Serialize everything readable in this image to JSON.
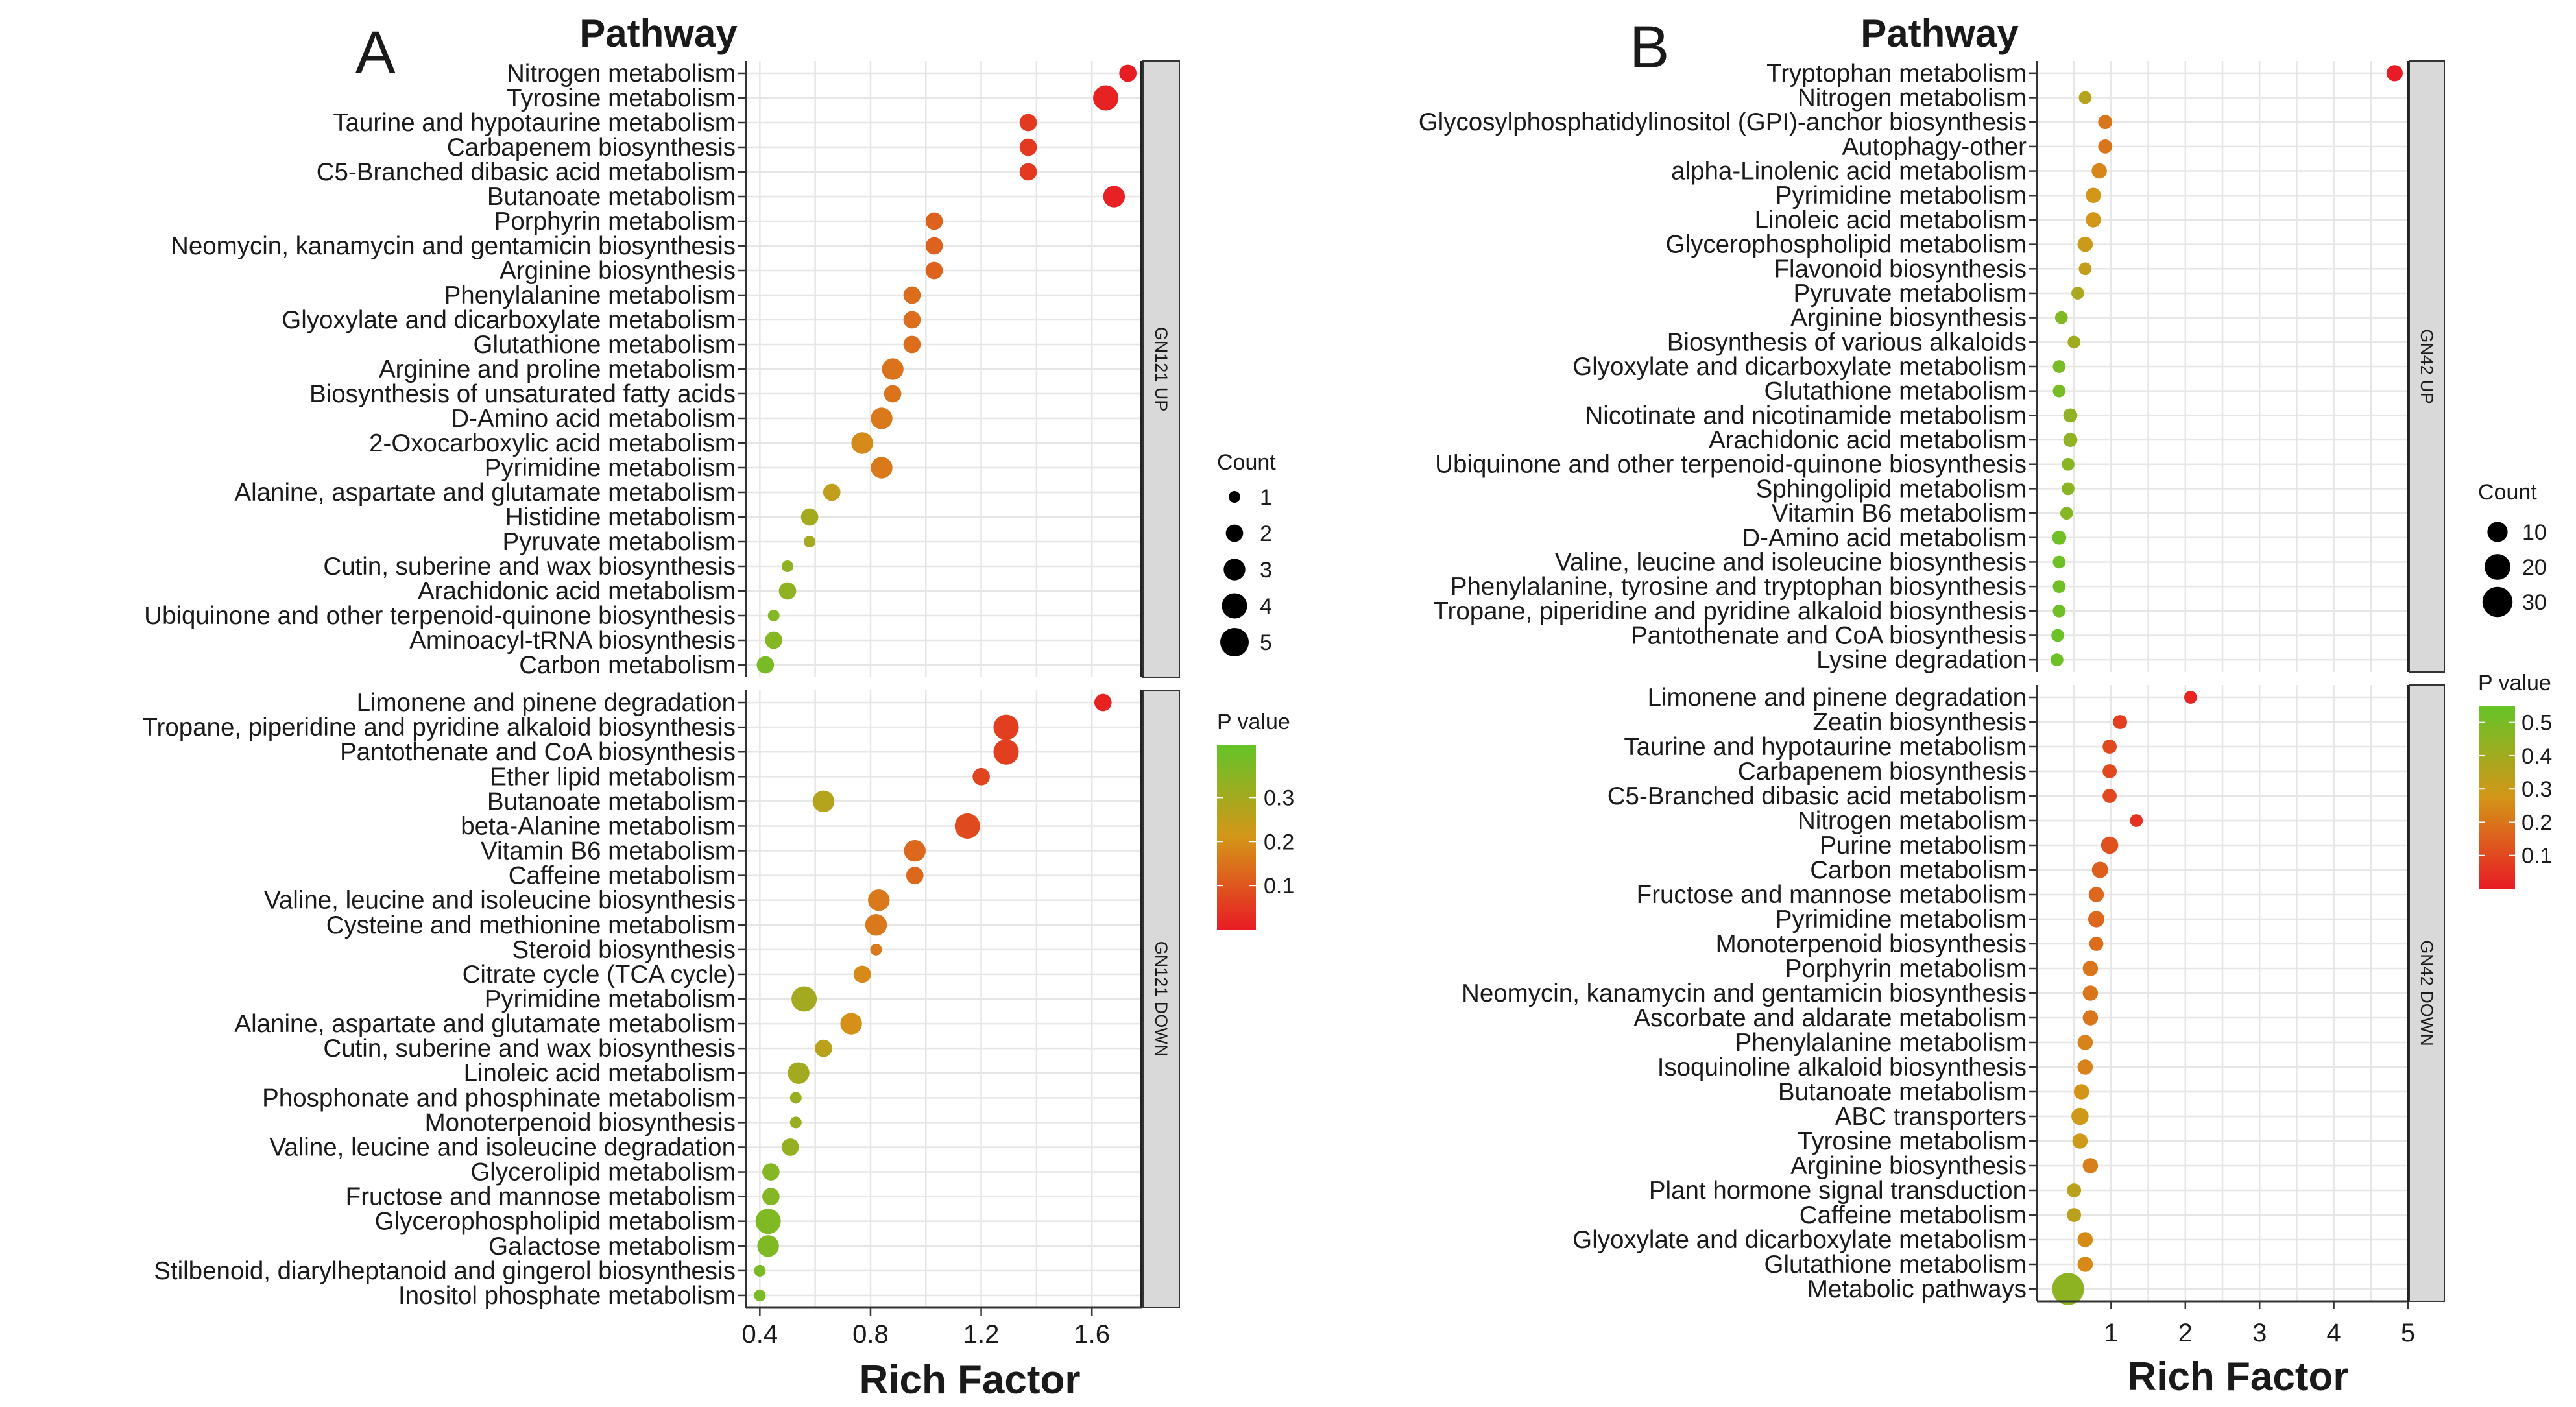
{
  "chart_data": [
    {
      "type": "scatter",
      "panel_label": "A",
      "title": "Pathway",
      "xlabel": "Rich Factor",
      "xlim": [
        0.35,
        1.78
      ],
      "xticks": [
        "0.4",
        "0.8",
        "1.2",
        "1.6"
      ],
      "xtick_values": [
        0.4,
        0.8,
        1.2,
        1.6
      ],
      "pvalue_domain": [
        0.0,
        0.42
      ],
      "count_domain": [
        1,
        5
      ],
      "legend": {
        "count_title": "Count",
        "count_labels": [
          "1",
          "2",
          "3",
          "4",
          "5"
        ],
        "count_values": [
          1,
          2,
          3,
          4,
          5
        ],
        "pvalue_title": "P value",
        "pvalue_labels": [
          "0.3",
          "0.2",
          "0.1"
        ],
        "pvalue_values": [
          0.3,
          0.2,
          0.1
        ]
      },
      "facets": [
        {
          "strip": "GN121 UP",
          "points": [
            {
              "pathway": "Nitrogen metabolism",
              "x": 1.73,
              "p": 0.002,
              "count": 2
            },
            {
              "pathway": "Tyrosine metabolism",
              "x": 1.65,
              "p": 0.01,
              "count": 4
            },
            {
              "pathway": "Taurine and hypotaurine metabolism",
              "x": 1.37,
              "p": 0.05,
              "count": 2
            },
            {
              "pathway": "Carbapenem biosynthesis",
              "x": 1.37,
              "p": 0.05,
              "count": 2
            },
            {
              "pathway": "C5-Branched dibasic acid metabolism",
              "x": 1.37,
              "p": 0.05,
              "count": 2
            },
            {
              "pathway": "Butanoate metabolism",
              "x": 1.68,
              "p": 0.008,
              "count": 3
            },
            {
              "pathway": "Porphyrin metabolism",
              "x": 1.03,
              "p": 0.12,
              "count": 2
            },
            {
              "pathway": "Neomycin, kanamycin and gentamicin biosynthesis",
              "x": 1.03,
              "p": 0.12,
              "count": 2
            },
            {
              "pathway": "Arginine biosynthesis",
              "x": 1.03,
              "p": 0.12,
              "count": 2
            },
            {
              "pathway": "Phenylalanine metabolism",
              "x": 0.95,
              "p": 0.14,
              "count": 2
            },
            {
              "pathway": "Glyoxylate and dicarboxylate metabolism",
              "x": 0.95,
              "p": 0.14,
              "count": 2
            },
            {
              "pathway": "Glutathione metabolism",
              "x": 0.95,
              "p": 0.14,
              "count": 2
            },
            {
              "pathway": "Arginine and proline metabolism",
              "x": 0.88,
              "p": 0.15,
              "count": 3
            },
            {
              "pathway": "Biosynthesis of unsaturated fatty acids",
              "x": 0.88,
              "p": 0.15,
              "count": 2
            },
            {
              "pathway": "D-Amino acid metabolism",
              "x": 0.84,
              "p": 0.16,
              "count": 3
            },
            {
              "pathway": "2-Oxocarboxylic acid metabolism",
              "x": 0.77,
              "p": 0.19,
              "count": 3
            },
            {
              "pathway": "Pyrimidine metabolism",
              "x": 0.84,
              "p": 0.16,
              "count": 3
            },
            {
              "pathway": "Alanine, aspartate and glutamate metabolism",
              "x": 0.66,
              "p": 0.25,
              "count": 2
            },
            {
              "pathway": "Histidine metabolism",
              "x": 0.58,
              "p": 0.3,
              "count": 2
            },
            {
              "pathway": "Pyruvate metabolism",
              "x": 0.58,
              "p": 0.3,
              "count": 1
            },
            {
              "pathway": "Cutin, suberine and wax biosynthesis",
              "x": 0.5,
              "p": 0.34,
              "count": 1
            },
            {
              "pathway": "Arachidonic acid metabolism",
              "x": 0.5,
              "p": 0.34,
              "count": 2
            },
            {
              "pathway": "Ubiquinone and other terpenoid-quinone biosynthesis",
              "x": 0.45,
              "p": 0.36,
              "count": 1
            },
            {
              "pathway": "Aminoacyl-tRNA biosynthesis",
              "x": 0.45,
              "p": 0.36,
              "count": 2
            },
            {
              "pathway": "Carbon metabolism",
              "x": 0.42,
              "p": 0.38,
              "count": 2
            }
          ]
        },
        {
          "strip": "GN121 DOWN",
          "points": [
            {
              "pathway": "Limonene and pinene degradation",
              "x": 1.64,
              "p": 0.01,
              "count": 2
            },
            {
              "pathway": "Tropane, piperidine and pyridine alkaloid biosynthesis",
              "x": 1.29,
              "p": 0.06,
              "count": 4
            },
            {
              "pathway": "Pantothenate and CoA biosynthesis",
              "x": 1.29,
              "p": 0.06,
              "count": 4
            },
            {
              "pathway": "Ether lipid metabolism",
              "x": 1.2,
              "p": 0.07,
              "count": 2
            },
            {
              "pathway": "Butanoate metabolism",
              "x": 0.63,
              "p": 0.27,
              "count": 3
            },
            {
              "pathway": "beta-Alanine metabolism",
              "x": 1.15,
              "p": 0.08,
              "count": 4
            },
            {
              "pathway": "Vitamin B6 metabolism",
              "x": 0.96,
              "p": 0.13,
              "count": 3
            },
            {
              "pathway": "Caffeine metabolism",
              "x": 0.96,
              "p": 0.13,
              "count": 2
            },
            {
              "pathway": "Valine, leucine and isoleucine biosynthesis",
              "x": 0.83,
              "p": 0.16,
              "count": 3
            },
            {
              "pathway": "Cysteine and methionine metabolism",
              "x": 0.82,
              "p": 0.16,
              "count": 3
            },
            {
              "pathway": "Steroid biosynthesis",
              "x": 0.82,
              "p": 0.16,
              "count": 1
            },
            {
              "pathway": "Citrate cycle (TCA cycle)",
              "x": 0.77,
              "p": 0.19,
              "count": 2
            },
            {
              "pathway": "Pyrimidine metabolism",
              "x": 0.56,
              "p": 0.3,
              "count": 4
            },
            {
              "pathway": "Alanine, aspartate and glutamate metabolism",
              "x": 0.73,
              "p": 0.2,
              "count": 3
            },
            {
              "pathway": "Cutin, suberine and wax biosynthesis",
              "x": 0.63,
              "p": 0.26,
              "count": 2
            },
            {
              "pathway": "Linoleic acid metabolism",
              "x": 0.54,
              "p": 0.3,
              "count": 3
            },
            {
              "pathway": "Phosphonate and phosphinate metabolism",
              "x": 0.53,
              "p": 0.32,
              "count": 1
            },
            {
              "pathway": "Monoterpenoid biosynthesis",
              "x": 0.53,
              "p": 0.32,
              "count": 1
            },
            {
              "pathway": "Valine, leucine and isoleucine degradation",
              "x": 0.51,
              "p": 0.33,
              "count": 2
            },
            {
              "pathway": "Glycerolipid metabolism",
              "x": 0.44,
              "p": 0.36,
              "count": 2
            },
            {
              "pathway": "Fructose and mannose metabolism",
              "x": 0.44,
              "p": 0.36,
              "count": 2
            },
            {
              "pathway": "Glycerophospholipid metabolism",
              "x": 0.43,
              "p": 0.37,
              "count": 4
            },
            {
              "pathway": "Galactose metabolism",
              "x": 0.43,
              "p": 0.37,
              "count": 3
            },
            {
              "pathway": "Stilbenoid, diarylheptanoid and gingerol biosynthesis",
              "x": 0.4,
              "p": 0.38,
              "count": 1
            },
            {
              "pathway": "Inositol phosphate metabolism",
              "x": 0.4,
              "p": 0.38,
              "count": 1
            }
          ]
        }
      ]
    },
    {
      "type": "scatter",
      "panel_label": "B",
      "title": "Pathway",
      "xlabel": "Rich Factor",
      "xlim": [
        0.0,
        5.0
      ],
      "xticks": [
        "1",
        "2",
        "3",
        "4",
        "5"
      ],
      "xtick_values": [
        1,
        2,
        3,
        4,
        5
      ],
      "pvalue_domain": [
        0.0,
        0.55
      ],
      "count_domain": [
        1,
        40
      ],
      "legend": {
        "count_title": "Count",
        "count_labels": [
          "10",
          "20",
          "30"
        ],
        "count_values": [
          10,
          20,
          30
        ],
        "pvalue_title": "P value",
        "pvalue_labels": [
          "0.5",
          "0.4",
          "0.3",
          "0.2",
          "0.1"
        ],
        "pvalue_values": [
          0.5,
          0.4,
          0.3,
          0.2,
          0.1
        ]
      },
      "facets": [
        {
          "strip": "GN42 UP",
          "points": [
            {
              "pathway": "Tryptophan metabolism",
              "x": 4.82,
              "p": 0.001,
              "count": 5
            },
            {
              "pathway": "Nitrogen metabolism",
              "x": 0.65,
              "p": 0.35,
              "count": 2
            },
            {
              "pathway": "Glycosylphosphatidylinositol (GPI)-anchor biosynthesis",
              "x": 0.92,
              "p": 0.2,
              "count": 3
            },
            {
              "pathway": "Autophagy-other",
              "x": 0.92,
              "p": 0.2,
              "count": 3
            },
            {
              "pathway": "alpha-Linolenic acid metabolism",
              "x": 0.84,
              "p": 0.24,
              "count": 4
            },
            {
              "pathway": "Pyrimidine metabolism",
              "x": 0.76,
              "p": 0.28,
              "count": 4
            },
            {
              "pathway": "Linoleic acid metabolism",
              "x": 0.76,
              "p": 0.28,
              "count": 4
            },
            {
              "pathway": "Glycerophospholipid metabolism",
              "x": 0.65,
              "p": 0.3,
              "count": 4
            },
            {
              "pathway": "Flavonoid biosynthesis",
              "x": 0.65,
              "p": 0.32,
              "count": 2
            },
            {
              "pathway": "Pyruvate metabolism",
              "x": 0.55,
              "p": 0.38,
              "count": 2
            },
            {
              "pathway": "Arginine biosynthesis",
              "x": 0.33,
              "p": 0.48,
              "count": 2
            },
            {
              "pathway": "Biosynthesis of various alkaloids",
              "x": 0.5,
              "p": 0.4,
              "count": 2
            },
            {
              "pathway": "Glyoxylate and dicarboxylate metabolism",
              "x": 0.3,
              "p": 0.5,
              "count": 2
            },
            {
              "pathway": "Glutathione metabolism",
              "x": 0.3,
              "p": 0.5,
              "count": 2
            },
            {
              "pathway": "Nicotinate and nicotinamide metabolism",
              "x": 0.45,
              "p": 0.44,
              "count": 3
            },
            {
              "pathway": "Arachidonic acid metabolism",
              "x": 0.45,
              "p": 0.44,
              "count": 3
            },
            {
              "pathway": "Ubiquinone and other terpenoid-quinone biosynthesis",
              "x": 0.42,
              "p": 0.46,
              "count": 2
            },
            {
              "pathway": "Sphingolipid metabolism",
              "x": 0.42,
              "p": 0.46,
              "count": 2
            },
            {
              "pathway": "Vitamin B6 metabolism",
              "x": 0.4,
              "p": 0.47,
              "count": 2
            },
            {
              "pathway": "D-Amino acid metabolism",
              "x": 0.3,
              "p": 0.52,
              "count": 3
            },
            {
              "pathway": "Valine, leucine and isoleucine biosynthesis",
              "x": 0.3,
              "p": 0.52,
              "count": 2
            },
            {
              "pathway": "Phenylalanine, tyrosine and tryptophan biosynthesis",
              "x": 0.3,
              "p": 0.52,
              "count": 2
            },
            {
              "pathway": "Tropane, piperidine and pyridine alkaloid biosynthesis",
              "x": 0.3,
              "p": 0.52,
              "count": 2
            },
            {
              "pathway": "Pantothenate and CoA biosynthesis",
              "x": 0.28,
              "p": 0.53,
              "count": 2
            },
            {
              "pathway": "Lysine degradation",
              "x": 0.27,
              "p": 0.53,
              "count": 2
            }
          ]
        },
        {
          "strip": "GN42 DOWN",
          "points": [
            {
              "pathway": "Limonene and pinene degradation",
              "x": 2.07,
              "p": 0.02,
              "count": 2
            },
            {
              "pathway": "Zeatin biosynthesis",
              "x": 1.12,
              "p": 0.08,
              "count": 3
            },
            {
              "pathway": "Taurine and hypotaurine metabolism",
              "x": 0.98,
              "p": 0.1,
              "count": 3
            },
            {
              "pathway": "Carbapenem biosynthesis",
              "x": 0.98,
              "p": 0.1,
              "count": 3
            },
            {
              "pathway": "C5-Branched dibasic acid metabolism",
              "x": 0.98,
              "p": 0.1,
              "count": 3
            },
            {
              "pathway": "Nitrogen metabolism",
              "x": 1.34,
              "p": 0.05,
              "count": 2
            },
            {
              "pathway": "Purine metabolism",
              "x": 0.98,
              "p": 0.12,
              "count": 6
            },
            {
              "pathway": "Carbon metabolism",
              "x": 0.85,
              "p": 0.15,
              "count": 5
            },
            {
              "pathway": "Fructose and mannose metabolism",
              "x": 0.8,
              "p": 0.17,
              "count": 4
            },
            {
              "pathway": "Pyrimidine metabolism",
              "x": 0.8,
              "p": 0.17,
              "count": 5
            },
            {
              "pathway": "Monoterpenoid biosynthesis",
              "x": 0.8,
              "p": 0.18,
              "count": 3
            },
            {
              "pathway": "Porphyrin metabolism",
              "x": 0.72,
              "p": 0.2,
              "count": 4
            },
            {
              "pathway": "Neomycin, kanamycin and gentamicin biosynthesis",
              "x": 0.72,
              "p": 0.2,
              "count": 4
            },
            {
              "pathway": "Ascorbate and aldarate metabolism",
              "x": 0.72,
              "p": 0.2,
              "count": 4
            },
            {
              "pathway": "Phenylalanine metabolism",
              "x": 0.65,
              "p": 0.23,
              "count": 4
            },
            {
              "pathway": "Isoquinoline alkaloid biosynthesis",
              "x": 0.65,
              "p": 0.23,
              "count": 4
            },
            {
              "pathway": "Butanoate metabolism",
              "x": 0.6,
              "p": 0.27,
              "count": 4
            },
            {
              "pathway": "ABC transporters",
              "x": 0.58,
              "p": 0.29,
              "count": 6
            },
            {
              "pathway": "Tyrosine metabolism",
              "x": 0.58,
              "p": 0.29,
              "count": 4
            },
            {
              "pathway": "Arginine biosynthesis",
              "x": 0.72,
              "p": 0.22,
              "count": 4
            },
            {
              "pathway": "Plant hormone signal transduction",
              "x": 0.5,
              "p": 0.34,
              "count": 3
            },
            {
              "pathway": "Caffeine metabolism",
              "x": 0.5,
              "p": 0.34,
              "count": 3
            },
            {
              "pathway": "Glyoxylate and dicarboxylate metabolism",
              "x": 0.65,
              "p": 0.25,
              "count": 4
            },
            {
              "pathway": "Glutathione metabolism",
              "x": 0.65,
              "p": 0.25,
              "count": 4
            },
            {
              "pathway": "Metabolic pathways",
              "x": 0.42,
              "p": 0.45,
              "count": 35
            }
          ]
        }
      ]
    }
  ]
}
